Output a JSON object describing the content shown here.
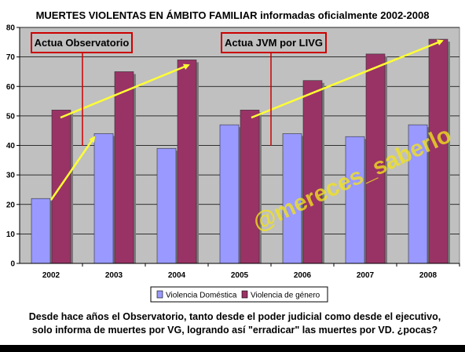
{
  "chart_data": {
    "type": "bar",
    "title": "MUERTES VIOLENTAS EN ÁMBITO FAMILIAR informadas oficialmente 2002-2008",
    "categories": [
      "2002",
      "2003",
      "2004",
      "2005",
      "2006",
      "2007",
      "2008"
    ],
    "series": [
      {
        "name": "Violencia Doméstica",
        "color": "#9999ff",
        "values": [
          22,
          44,
          39,
          47,
          44,
          43,
          47
        ]
      },
      {
        "name": "Violencia de género",
        "color": "#993366",
        "values": [
          52,
          65,
          69,
          52,
          62,
          71,
          76
        ]
      }
    ],
    "ylim": [
      0,
      80
    ],
    "yticks": [
      0,
      10,
      20,
      30,
      40,
      50,
      60,
      70,
      80
    ],
    "grid": true,
    "plot_background": "#c0c0c0",
    "legend_position": "bottom",
    "annotations": [
      {
        "text": "Actua Observatorio",
        "color": "#cc0000"
      },
      {
        "text": "Actua JVM por LIVG",
        "color": "#cc0000"
      }
    ],
    "trend_arrow_color": "#ffff33",
    "watermark": "@mereces_saberlo"
  },
  "caption_line1": "Desde hace años el Observatorio, tanto desde el poder judicial como desde el ejecutivo,",
  "caption_line2": "solo informa de muertes por VG, logrando así \"erradicar\" las muertes por VD. ¿pocas?"
}
